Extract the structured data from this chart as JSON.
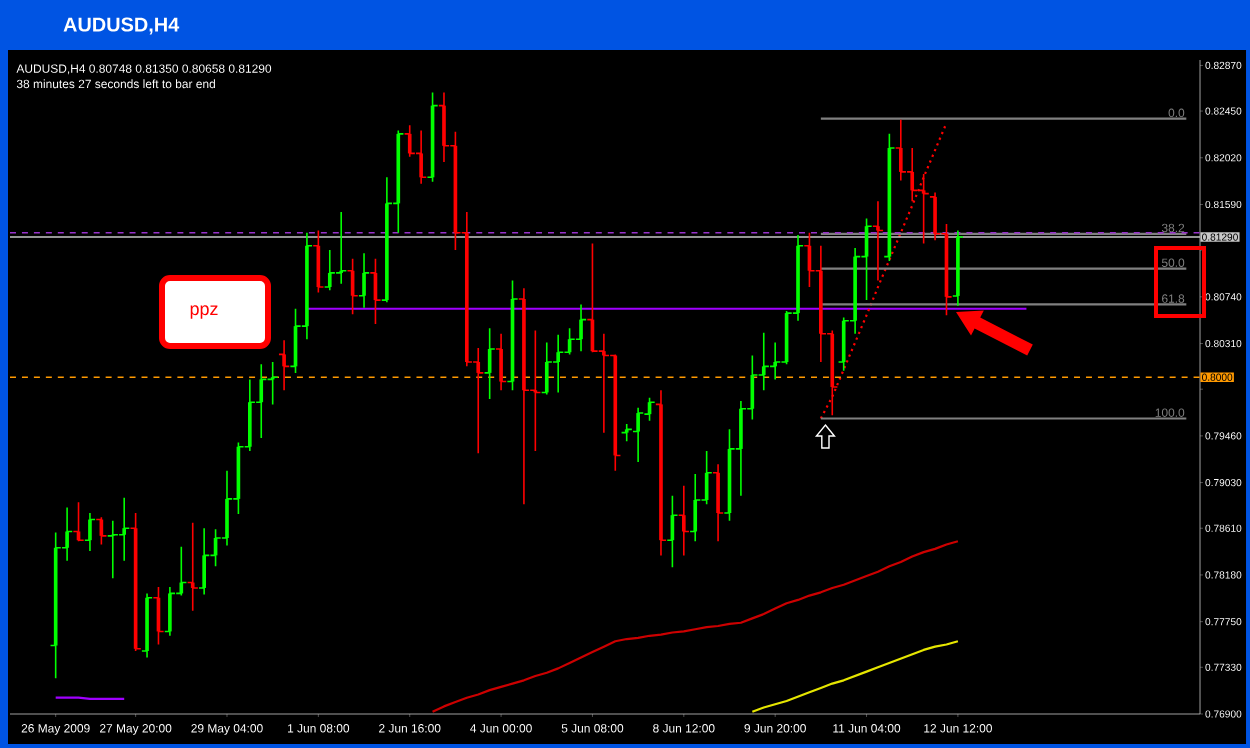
{
  "chart_data": {
    "type": "candlestick",
    "title": "AUDUSD,H4",
    "annotations": [
      "AUDUSD,H4  0.80748 0.81350 0.80658 0.81290",
      "38 minutes 27 seconds left to bar end",
      "ppz"
    ],
    "categories": [
      "26 May 2009",
      null,
      null,
      null,
      null,
      null,
      null,
      "27 May 20:00",
      null,
      null,
      null,
      null,
      null,
      null,
      null,
      "29 May 04:00",
      null,
      null,
      null,
      null,
      null,
      null,
      null,
      "1 Jun 08:00",
      null,
      null,
      null,
      null,
      null,
      null,
      null,
      "2 Jun 16:00",
      null,
      null,
      null,
      null,
      null,
      null,
      null,
      "4 Jun 00:00",
      null,
      null,
      null,
      null,
      null,
      null,
      null,
      "5 Jun 08:00",
      null,
      null,
      null,
      null,
      null,
      null,
      null,
      "8 Jun 12:00",
      null,
      null,
      null,
      null,
      null,
      null,
      null,
      "9 Jun 20:00",
      null,
      null,
      null,
      null,
      null,
      null,
      null,
      "11 Jun 04:00",
      null,
      null,
      null,
      null,
      null,
      null,
      null,
      "12 Jun 12:00",
      null,
      null,
      null,
      null,
      null,
      null,
      null,
      null,
      null,
      null,
      null,
      null,
      null,
      null,
      null,
      null,
      null,
      null,
      null,
      null
    ],
    "ohlc": [
      [
        0.7753,
        0.7857,
        0.7723,
        0.7843
      ],
      [
        0.7843,
        0.788,
        0.7831,
        0.7858
      ],
      [
        0.7858,
        0.7885,
        0.7849,
        0.785
      ],
      [
        0.785,
        0.7875,
        0.784,
        0.7869
      ],
      [
        0.7869,
        0.7871,
        0.7846,
        0.7854
      ],
      [
        0.7854,
        0.7868,
        0.7815,
        0.7855
      ],
      [
        0.7855,
        0.7889,
        0.7831,
        0.7861
      ],
      [
        0.7861,
        0.7875,
        0.7748,
        0.775
      ],
      [
        0.7748,
        0.7801,
        0.7742,
        0.7797
      ],
      [
        0.7797,
        0.7807,
        0.7754,
        0.7766
      ],
      [
        0.7766,
        0.7807,
        0.7762,
        0.7801
      ],
      [
        0.7801,
        0.7844,
        0.7799,
        0.7811
      ],
      [
        0.7811,
        0.7866,
        0.7785,
        0.7806
      ],
      [
        0.7806,
        0.7861,
        0.78,
        0.7836
      ],
      [
        0.7836,
        0.786,
        0.7826,
        0.7852
      ],
      [
        0.7852,
        0.7914,
        0.7845,
        0.7888
      ],
      [
        0.7888,
        0.794,
        0.7874,
        0.7936
      ],
      [
        0.7936,
        0.7998,
        0.7932,
        0.7977
      ],
      [
        0.7977,
        0.8012,
        0.7944,
        0.7998
      ],
      [
        0.7998,
        0.8014,
        0.7975,
        0.8
      ],
      [
        0.8021,
        0.8034,
        0.7988,
        0.801
      ],
      [
        0.801,
        0.8063,
        0.8004,
        0.8047
      ],
      [
        0.8047,
        0.8133,
        0.8035,
        0.8121
      ],
      [
        0.8121,
        0.8135,
        0.8078,
        0.8083
      ],
      [
        0.8083,
        0.8117,
        0.808,
        0.8096
      ],
      [
        0.8096,
        0.8152,
        0.8086,
        0.8098
      ],
      [
        0.8098,
        0.8109,
        0.8058,
        0.8075
      ],
      [
        0.8075,
        0.8114,
        0.8064,
        0.8096
      ],
      [
        0.8096,
        0.8109,
        0.8049,
        0.8071
      ],
      [
        0.8071,
        0.8184,
        0.8069,
        0.816
      ],
      [
        0.816,
        0.8227,
        0.8133,
        0.8224
      ],
      [
        0.8224,
        0.8232,
        0.8203,
        0.8206
      ],
      [
        0.8206,
        0.8227,
        0.8178,
        0.8184
      ],
      [
        0.8184,
        0.8262,
        0.818,
        0.825
      ],
      [
        0.825,
        0.8262,
        0.8198,
        0.8213
      ],
      [
        0.8213,
        0.8226,
        0.8117,
        0.8133
      ],
      [
        0.8133,
        0.8152,
        0.801,
        0.8014
      ],
      [
        0.8014,
        0.8027,
        0.793,
        0.8004
      ],
      [
        0.8004,
        0.8045,
        0.798,
        0.8026
      ],
      [
        0.8026,
        0.804,
        0.7988,
        0.7996
      ],
      [
        0.7996,
        0.8089,
        0.7988,
        0.8072
      ],
      [
        0.8072,
        0.8082,
        0.7883,
        0.7988
      ],
      [
        0.7988,
        0.8043,
        0.7932,
        0.7986
      ],
      [
        0.7986,
        0.8032,
        0.7984,
        0.8014
      ],
      [
        0.8014,
        0.8039,
        0.7986,
        0.8023
      ],
      [
        0.8023,
        0.8045,
        0.8021,
        0.8035
      ],
      [
        0.8035,
        0.8067,
        0.8024,
        0.8053
      ],
      [
        0.8053,
        0.8123,
        0.8023,
        0.8024
      ],
      [
        0.8024,
        0.804,
        0.7949,
        0.802
      ],
      [
        0.802,
        0.8021,
        0.7914,
        0.7928
      ],
      [
        0.7949,
        0.7957,
        0.7941,
        0.7952
      ],
      [
        0.795,
        0.7972,
        0.7922,
        0.7967
      ],
      [
        0.7966,
        0.7981,
        0.796,
        0.7977
      ],
      [
        0.7975,
        0.7988,
        0.7836,
        0.785
      ],
      [
        0.785,
        0.7891,
        0.7825,
        0.7873
      ],
      [
        0.7873,
        0.79,
        0.7836,
        0.7858
      ],
      [
        0.7858,
        0.7911,
        0.7849,
        0.7887
      ],
      [
        0.7887,
        0.7932,
        0.7883,
        0.7912
      ],
      [
        0.7912,
        0.792,
        0.7849,
        0.7875
      ],
      [
        0.7875,
        0.7952,
        0.7868,
        0.7934
      ],
      [
        0.7934,
        0.7978,
        0.7891,
        0.7971
      ],
      [
        0.7971,
        0.802,
        0.7961,
        0.8002
      ],
      [
        0.8002,
        0.8041,
        0.7988,
        0.801
      ],
      [
        0.801,
        0.8032,
        0.7998,
        0.8014
      ],
      [
        0.8014,
        0.8061,
        0.8012,
        0.8059
      ],
      [
        0.8059,
        0.8131,
        0.8052,
        0.8121
      ],
      [
        0.8121,
        0.8133,
        0.8083,
        0.8098
      ],
      [
        0.8098,
        0.8121,
        0.8014,
        0.804
      ],
      [
        0.804,
        0.8043,
        0.7965,
        0.7991
      ],
      [
        0.8014,
        0.8055,
        0.8006,
        0.8052
      ],
      [
        0.8052,
        0.8119,
        0.804,
        0.8111
      ],
      [
        0.8111,
        0.8146,
        0.8071,
        0.8139
      ],
      [
        0.8139,
        0.8162,
        0.8089,
        0.8135
      ],
      [
        0.8111,
        0.8224,
        0.8107,
        0.8211
      ],
      [
        0.8211,
        0.8237,
        0.8181,
        0.8189
      ],
      [
        0.8189,
        0.8211,
        0.8162,
        0.8172
      ],
      [
        0.8172,
        0.8187,
        0.8123,
        0.8169
      ],
      [
        0.8166,
        0.817,
        0.8126,
        0.8132
      ],
      [
        0.8132,
        0.8141,
        0.8057,
        0.8074
      ],
      [
        0.80748,
        0.8135,
        0.80658,
        0.8129
      ],
      null,
      null,
      null,
      null,
      null,
      null,
      null,
      null,
      null,
      null,
      null,
      null,
      null,
      null,
      null,
      null,
      null,
      null,
      null,
      null
    ],
    "colors": [
      "#00ff00",
      "#00ff00",
      "#ff0000",
      "#00ff00",
      "#ff0000",
      "#00ff00",
      "#00ff00",
      "#ff0000",
      "#00ff00",
      "#ff0000",
      "#00ff00",
      "#00ff00",
      "#ff0000",
      "#00ff00",
      "#00ff00",
      "#00ff00",
      "#00ff00",
      "#00ff00",
      "#00ff00",
      "#00ff00",
      "#ff0000",
      "#00ff00",
      "#00ff00",
      "#ff0000",
      "#00ff00",
      "#00ff00",
      "#ff0000",
      "#00ff00",
      "#ff0000",
      "#00ff00",
      "#00ff00",
      "#ff0000",
      "#ff0000",
      "#00ff00",
      "#ff0000",
      "#ff0000",
      "#ff0000",
      "#ff0000",
      "#00ff00",
      "#ff0000",
      "#00ff00",
      "#ff0000",
      "#ff0000",
      "#00ff00",
      "#00ff00",
      "#00ff00",
      "#00ff00",
      "#ff0000",
      "#ff0000",
      "#ff0000",
      "#00ff00",
      "#00ff00",
      "#00ff00",
      "#ff0000",
      "#00ff00",
      "#ff0000",
      "#00ff00",
      "#00ff00",
      "#ff0000",
      "#00ff00",
      "#00ff00",
      "#00ff00",
      "#00ff00",
      "#00ff00",
      "#00ff00",
      "#00ff00",
      "#ff0000",
      "#ff0000",
      "#ff0000",
      "#00ff00",
      "#00ff00",
      "#00ff00",
      "#ff0000",
      "#00ff00",
      "#ff0000",
      "#ff0000",
      "#ff0000",
      "#ff0000",
      "#ff0000",
      "#00ff00",
      null,
      null,
      null,
      null,
      null,
      null,
      null,
      null,
      null,
      null,
      null,
      null,
      null,
      null,
      null,
      null,
      null,
      null,
      null,
      null
    ],
    "series": [
      {
        "type": "line",
        "color": "#cc0000",
        "values": [
          null,
          null,
          null,
          null,
          null,
          null,
          null,
          null,
          null,
          null,
          null,
          null,
          null,
          null,
          null,
          null,
          null,
          null,
          null,
          null,
          null,
          null,
          null,
          null,
          null,
          null,
          null,
          null,
          null,
          null,
          null,
          null,
          null,
          0.7692,
          0.7697,
          0.7701,
          0.7705,
          0.7708,
          0.7712,
          0.7715,
          0.7718,
          0.7721,
          0.7725,
          0.7728,
          0.7732,
          0.7737,
          0.7742,
          0.7747,
          0.7752,
          0.7757,
          0.7759,
          0.776,
          0.7762,
          0.7763,
          0.7765,
          0.7766,
          0.7768,
          0.777,
          0.7771,
          0.7773,
          0.7774,
          0.7778,
          0.7782,
          0.7787,
          0.7792,
          0.7795,
          0.7799,
          0.7802,
          0.7806,
          0.7809,
          0.7813,
          0.7817,
          0.7821,
          0.7826,
          0.783,
          0.7835,
          0.7839,
          0.7842,
          0.7846,
          0.7849,
          null,
          null,
          null,
          null,
          null,
          null,
          null,
          null,
          null,
          null,
          null,
          null,
          null,
          null,
          null,
          null,
          null,
          null,
          null,
          null
        ]
      },
      {
        "type": "line",
        "color": "#e6e600",
        "values": [
          null,
          null,
          null,
          null,
          null,
          null,
          null,
          null,
          null,
          null,
          null,
          null,
          null,
          null,
          null,
          null,
          null,
          null,
          null,
          null,
          null,
          null,
          null,
          null,
          null,
          null,
          null,
          null,
          null,
          null,
          null,
          null,
          null,
          null,
          null,
          null,
          null,
          null,
          null,
          null,
          null,
          null,
          null,
          null,
          null,
          null,
          null,
          null,
          null,
          null,
          null,
          null,
          null,
          null,
          null,
          null,
          null,
          null,
          null,
          null,
          null,
          0.7692,
          0.7696,
          0.7699,
          0.7702,
          0.7706,
          0.771,
          0.7714,
          0.7718,
          0.7721,
          0.7725,
          0.7729,
          0.7733,
          0.7737,
          0.7741,
          0.7745,
          0.7749,
          0.7752,
          0.7754,
          0.7757,
          null,
          null,
          null,
          null,
          null,
          null,
          null,
          null,
          null,
          null,
          null,
          null,
          null,
          null,
          null,
          null,
          null,
          null,
          null,
          null
        ]
      },
      {
        "type": "line",
        "color": "#a000ff",
        "values": [
          0.7705,
          0.7705,
          0.7705,
          0.7704,
          0.7704,
          0.7704,
          0.7704,
          null,
          null,
          null,
          null,
          null,
          null,
          null,
          null,
          null,
          null,
          null,
          null,
          null,
          null,
          null,
          null,
          null,
          null,
          null,
          null,
          null,
          null,
          null,
          null,
          null,
          null,
          null,
          null,
          null,
          null,
          null,
          null,
          null,
          null,
          null,
          null,
          null,
          null,
          null,
          null,
          null,
          null,
          null,
          null,
          null,
          null,
          null,
          null,
          null,
          null,
          null,
          null,
          null,
          null,
          null,
          null,
          null,
          null,
          null,
          null,
          null,
          null,
          null,
          null,
          null,
          null,
          null,
          null,
          null,
          null,
          null,
          null,
          null,
          null,
          null,
          null,
          null,
          null,
          null,
          null,
          null,
          null,
          null,
          null,
          null,
          null,
          null,
          null,
          null,
          null,
          null,
          null,
          null
        ]
      },
      {
        "type": "line",
        "color": "#a000ff",
        "values": [
          null,
          null,
          null,
          null,
          null,
          null,
          null,
          null,
          null,
          null,
          null,
          null,
          null,
          null,
          null,
          null,
          null,
          null,
          null,
          null,
          null,
          null,
          0.8063,
          0.8063,
          0.8063,
          0.8063,
          0.8063,
          0.8063,
          0.8063,
          0.8063,
          0.8063,
          0.8063,
          0.8063,
          0.8063,
          0.8063,
          0.8063,
          0.8063,
          0.8063,
          0.8063,
          0.8063,
          0.8063,
          0.8063,
          0.8063,
          0.8063,
          0.8063,
          0.8063,
          0.8063,
          0.8063,
          0.8063,
          0.8063,
          0.8063,
          0.8063,
          0.8063,
          0.8063,
          0.8063,
          0.8063,
          0.8063,
          0.8063,
          0.8063,
          0.8063,
          0.8063,
          0.8063,
          0.8063,
          0.8063,
          0.8063,
          0.8063,
          0.8063,
          0.8063,
          0.8063,
          0.8063,
          0.8063,
          0.8063,
          0.8063,
          0.8063,
          0.8063,
          0.8063,
          0.8063,
          0.8063,
          0.8063,
          0.8063,
          0.8063,
          0.8063,
          0.8063,
          0.8063,
          0.8063,
          0.8063,
          null,
          null,
          null,
          null,
          null,
          null,
          null,
          null,
          null,
          null,
          null,
          null,
          null,
          null
        ]
      },
      {
        "type": "line",
        "color": "#ff0000",
        "line_style": "dotted",
        "values": [
          null,
          null,
          null,
          null,
          null,
          null,
          null,
          null,
          null,
          null,
          null,
          null,
          null,
          null,
          null,
          null,
          null,
          null,
          null,
          null,
          null,
          null,
          null,
          null,
          null,
          null,
          null,
          null,
          null,
          null,
          null,
          null,
          null,
          null,
          null,
          null,
          null,
          null,
          null,
          null,
          null,
          null,
          null,
          null,
          null,
          null,
          null,
          null,
          null,
          null,
          null,
          null,
          null,
          null,
          null,
          null,
          null,
          null,
          null,
          null,
          null,
          null,
          null,
          null,
          null,
          null,
          null,
          0.7962,
          0.7982,
          0.8007,
          0.8032,
          0.8057,
          0.8083,
          0.8108,
          0.8133,
          0.8158,
          0.8184,
          0.8209,
          0.8234,
          null,
          null,
          null,
          null,
          null,
          null,
          null,
          null,
          null,
          null,
          null,
          null,
          null,
          null,
          null,
          null,
          null,
          null,
          null,
          null,
          null
        ]
      },
      {
        "type": "line",
        "name": "0.0",
        "color": "#808080",
        "values": [
          null,
          null,
          null,
          null,
          null,
          null,
          null,
          null,
          null,
          null,
          null,
          null,
          null,
          null,
          null,
          null,
          null,
          null,
          null,
          null,
          null,
          null,
          null,
          null,
          null,
          null,
          null,
          null,
          null,
          null,
          null,
          null,
          null,
          null,
          null,
          null,
          null,
          null,
          null,
          null,
          null,
          null,
          null,
          null,
          null,
          null,
          null,
          null,
          null,
          null,
          null,
          null,
          null,
          null,
          null,
          null,
          null,
          null,
          null,
          null,
          null,
          null,
          null,
          null,
          null,
          null,
          null,
          0.8238,
          0.8238,
          0.8238,
          0.8238,
          0.8238,
          0.8238,
          0.8238,
          0.8238,
          0.8238,
          0.8238,
          0.8238,
          0.8238,
          0.8238,
          0.8238,
          0.8238,
          0.8238,
          0.8238,
          0.8238,
          0.8238,
          0.8238,
          0.8238,
          0.8238,
          0.8238,
          0.8238,
          0.8238,
          0.8238,
          0.8238,
          0.8238,
          0.8238,
          0.8238,
          0.8238,
          0.8238,
          0.8238
        ]
      },
      {
        "type": "line",
        "name": "38.2",
        "color": "#808080",
        "values": [
          null,
          null,
          null,
          null,
          null,
          null,
          null,
          null,
          null,
          null,
          null,
          null,
          null,
          null,
          null,
          null,
          null,
          null,
          null,
          null,
          null,
          null,
          null,
          null,
          null,
          null,
          null,
          null,
          null,
          null,
          null,
          null,
          null,
          null,
          null,
          null,
          null,
          null,
          null,
          null,
          null,
          null,
          null,
          null,
          null,
          null,
          null,
          null,
          null,
          null,
          null,
          null,
          null,
          null,
          null,
          null,
          null,
          null,
          null,
          null,
          null,
          null,
          null,
          null,
          null,
          null,
          null,
          0.8132,
          0.8132,
          0.8132,
          0.8132,
          0.8132,
          0.8132,
          0.8132,
          0.8132,
          0.8132,
          0.8132,
          0.8132,
          0.8132,
          0.8132,
          0.8132,
          0.8132,
          0.8132,
          0.8132,
          0.8132,
          0.8132,
          0.8132,
          0.8132,
          0.8132,
          0.8132,
          0.8132,
          0.8132,
          0.8132,
          0.8132,
          0.8132,
          0.8132,
          0.8132,
          0.8132,
          0.8132,
          0.8132
        ]
      },
      {
        "type": "line",
        "name": "50.0",
        "color": "#808080",
        "values": [
          null,
          null,
          null,
          null,
          null,
          null,
          null,
          null,
          null,
          null,
          null,
          null,
          null,
          null,
          null,
          null,
          null,
          null,
          null,
          null,
          null,
          null,
          null,
          null,
          null,
          null,
          null,
          null,
          null,
          null,
          null,
          null,
          null,
          null,
          null,
          null,
          null,
          null,
          null,
          null,
          null,
          null,
          null,
          null,
          null,
          null,
          null,
          null,
          null,
          null,
          null,
          null,
          null,
          null,
          null,
          null,
          null,
          null,
          null,
          null,
          null,
          null,
          null,
          null,
          null,
          null,
          null,
          0.81,
          0.81,
          0.81,
          0.81,
          0.81,
          0.81,
          0.81,
          0.81,
          0.81,
          0.81,
          0.81,
          0.81,
          0.81,
          0.81,
          0.81,
          0.81,
          0.81,
          0.81,
          0.81,
          0.81,
          0.81,
          0.81,
          0.81,
          0.81,
          0.81,
          0.81,
          0.81,
          0.81,
          0.81,
          0.81,
          0.81,
          0.81,
          0.81
        ]
      },
      {
        "type": "line",
        "name": "61.8",
        "color": "#808080",
        "values": [
          null,
          null,
          null,
          null,
          null,
          null,
          null,
          null,
          null,
          null,
          null,
          null,
          null,
          null,
          null,
          null,
          null,
          null,
          null,
          null,
          null,
          null,
          null,
          null,
          null,
          null,
          null,
          null,
          null,
          null,
          null,
          null,
          null,
          null,
          null,
          null,
          null,
          null,
          null,
          null,
          null,
          null,
          null,
          null,
          null,
          null,
          null,
          null,
          null,
          null,
          null,
          null,
          null,
          null,
          null,
          null,
          null,
          null,
          null,
          null,
          null,
          null,
          null,
          null,
          null,
          null,
          null,
          0.8067,
          0.8067,
          0.8067,
          0.8067,
          0.8067,
          0.8067,
          0.8067,
          0.8067,
          0.8067,
          0.8067,
          0.8067,
          0.8067,
          0.8067,
          0.8067,
          0.8067,
          0.8067,
          0.8067,
          0.8067,
          0.8067,
          0.8067,
          0.8067,
          0.8067,
          0.8067,
          0.8067,
          0.8067,
          0.8067,
          0.8067,
          0.8067,
          0.8067,
          0.8067,
          0.8067,
          0.8067,
          0.8067
        ]
      },
      {
        "type": "line",
        "name": "100.0",
        "color": "#808080",
        "values": [
          null,
          null,
          null,
          null,
          null,
          null,
          null,
          null,
          null,
          null,
          null,
          null,
          null,
          null,
          null,
          null,
          null,
          null,
          null,
          null,
          null,
          null,
          null,
          null,
          null,
          null,
          null,
          null,
          null,
          null,
          null,
          null,
          null,
          null,
          null,
          null,
          null,
          null,
          null,
          null,
          null,
          null,
          null,
          null,
          null,
          null,
          null,
          null,
          null,
          null,
          null,
          null,
          null,
          null,
          null,
          null,
          null,
          null,
          null,
          null,
          null,
          null,
          null,
          null,
          null,
          null,
          null,
          0.7962,
          0.7962,
          0.7962,
          0.7962,
          0.7962,
          0.7962,
          0.7962,
          0.7962,
          0.7962,
          0.7962,
          0.7962,
          0.7962,
          0.7962,
          0.7962,
          0.7962,
          0.7962,
          0.7962,
          0.7962,
          0.7962,
          0.7962,
          0.7962,
          0.7962,
          0.7962,
          0.7962,
          0.7962,
          0.7962,
          0.7962,
          0.7962,
          0.7962,
          0.7962,
          0.7962,
          0.7962,
          0.7962
        ]
      }
    ],
    "ref_lines": [
      {
        "axis": "y",
        "value": 0.8133,
        "color": "#9932cc",
        "line_style": "dashed"
      },
      {
        "axis": "y",
        "value": 0.8129,
        "label": "0.81290",
        "color": "#c8c8c8",
        "line_style": "solid"
      },
      {
        "axis": "y",
        "value": 0.8,
        "label": "0.8000",
        "color": "#ff9900",
        "line_style": "dashed"
      }
    ],
    "ylim": [
      0.769,
      0.8292
    ],
    "yticks": [
      {
        "value": 0.8287,
        "label": "0.82870"
      },
      {
        "value": 0.8245,
        "label": "0.82450"
      },
      {
        "value": 0.8202,
        "label": "0.82020"
      },
      {
        "value": 0.8159,
        "label": "0.81590"
      },
      {
        "value": 0.8117,
        "label": null
      },
      {
        "value": 0.8074,
        "label": "0.80740"
      },
      {
        "value": 0.8031,
        "label": "0.80310"
      },
      {
        "value": 0.7989,
        "label": null
      },
      {
        "value": 0.7946,
        "label": "0.79460"
      },
      {
        "value": 0.7903,
        "label": "0.79030"
      },
      {
        "value": 0.7861,
        "label": "0.78610"
      },
      {
        "value": 0.7818,
        "label": "0.78180"
      },
      {
        "value": 0.7775,
        "label": "0.77750"
      },
      {
        "value": 0.7733,
        "label": "0.77330"
      },
      {
        "value": 0.769,
        "label": "0.76900"
      }
    ]
  }
}
